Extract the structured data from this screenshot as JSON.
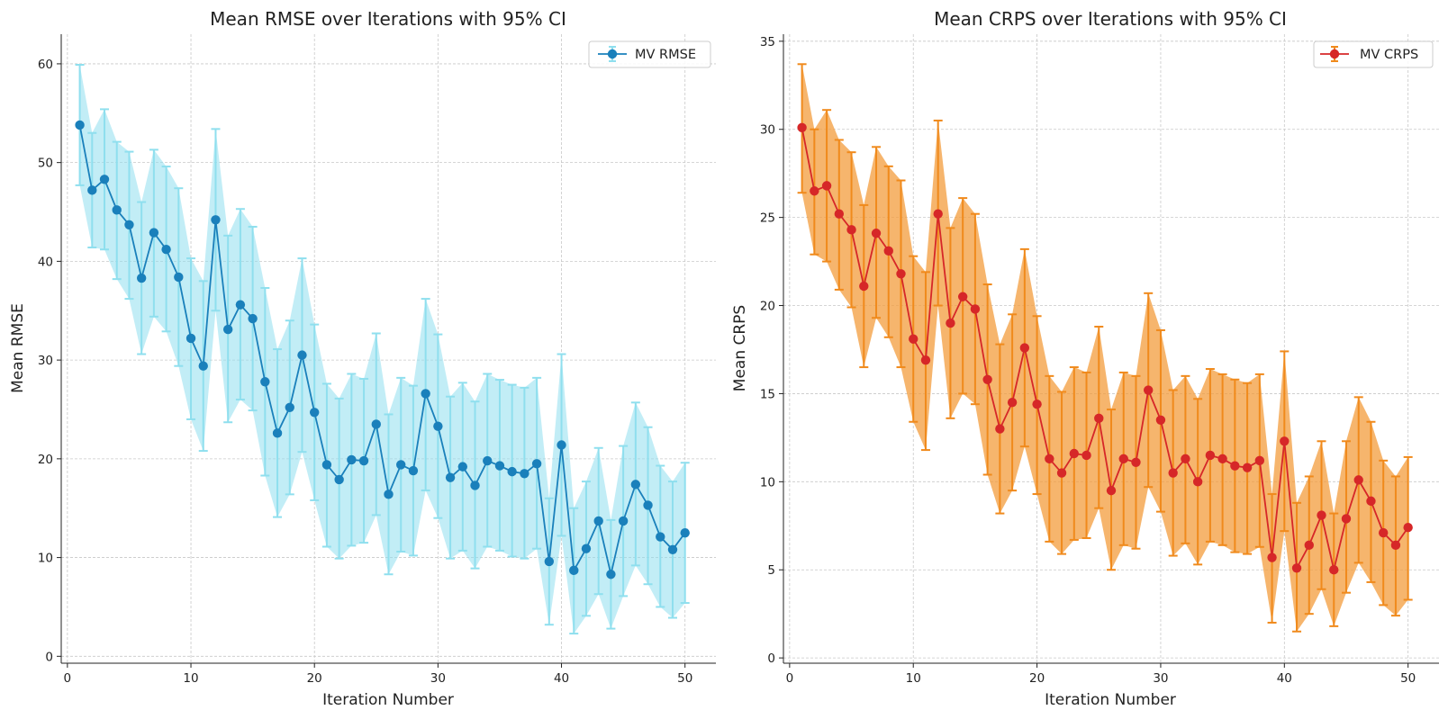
{
  "chart_data": [
    {
      "type": "line",
      "title": "Mean RMSE over Iterations with 95% CI",
      "xlabel": "Iteration Number",
      "ylabel": "Mean RMSE",
      "xlim": [
        -0.5,
        52.5
      ],
      "ylim": [
        -0.7,
        63
      ],
      "xticks": [
        0,
        10,
        20,
        30,
        40,
        50
      ],
      "yticks": [
        0,
        10,
        20,
        30,
        40,
        50,
        60
      ],
      "grid": true,
      "legend_position": "top-right",
      "series": [
        {
          "name": "MV RMSE",
          "line_color": "#1a80bb",
          "ci_color": "#8fdfee",
          "x": [
            1,
            2,
            3,
            4,
            5,
            6,
            7,
            8,
            9,
            10,
            11,
            12,
            13,
            14,
            15,
            16,
            17,
            18,
            19,
            20,
            21,
            22,
            23,
            24,
            25,
            26,
            27,
            28,
            29,
            30,
            31,
            32,
            33,
            34,
            35,
            36,
            37,
            38,
            39,
            40,
            41,
            42,
            43,
            44,
            45,
            46,
            47,
            48,
            49,
            50
          ],
          "values": [
            53.8,
            47.2,
            48.3,
            45.2,
            43.7,
            38.3,
            42.9,
            41.2,
            38.4,
            32.2,
            29.4,
            44.2,
            33.1,
            35.6,
            34.2,
            27.8,
            22.6,
            25.2,
            30.5,
            24.7,
            19.4,
            17.9,
            19.9,
            19.8,
            23.5,
            16.4,
            19.4,
            18.8,
            26.6,
            23.3,
            18.1,
            19.2,
            17.3,
            19.8,
            19.3,
            18.7,
            18.5,
            19.5,
            9.6,
            21.4,
            8.7,
            10.9,
            13.7,
            8.3,
            13.7,
            17.4,
            15.3,
            12.1,
            10.8,
            12.5
          ],
          "lower": [
            47.7,
            41.4,
            41.2,
            38.2,
            36.2,
            30.6,
            34.4,
            32.9,
            29.4,
            24.0,
            20.8,
            35.0,
            23.7,
            26.0,
            24.9,
            18.3,
            14.1,
            16.4,
            20.7,
            15.8,
            11.1,
            9.9,
            11.2,
            11.5,
            14.3,
            8.3,
            10.6,
            10.2,
            16.8,
            14.0,
            9.9,
            10.7,
            8.9,
            11.1,
            10.7,
            10.1,
            9.9,
            10.9,
            3.2,
            12.2,
            2.3,
            4.1,
            6.3,
            2.8,
            6.1,
            9.2,
            7.3,
            5.0,
            3.9,
            5.4
          ],
          "upper": [
            59.9,
            53.0,
            55.4,
            52.1,
            51.1,
            46.0,
            51.3,
            49.6,
            47.4,
            40.3,
            38.0,
            53.4,
            42.6,
            45.3,
            43.5,
            37.3,
            31.1,
            34.0,
            40.3,
            33.6,
            27.6,
            26.1,
            28.6,
            28.1,
            32.7,
            24.5,
            28.2,
            27.4,
            36.2,
            32.6,
            26.3,
            27.7,
            25.8,
            28.6,
            28.0,
            27.5,
            27.2,
            28.2,
            16.0,
            30.6,
            15.0,
            17.7,
            21.1,
            13.8,
            21.3,
            25.7,
            23.2,
            19.3,
            17.7,
            19.6
          ]
        }
      ]
    },
    {
      "type": "line",
      "title": "Mean CRPS over Iterations with 95% CI",
      "xlabel": "Iteration Number",
      "ylabel": "Mean CRPS",
      "xlim": [
        -0.5,
        52.5
      ],
      "ylim": [
        -0.3,
        35.4
      ],
      "xticks": [
        0,
        10,
        20,
        30,
        40,
        50
      ],
      "yticks": [
        0,
        5,
        10,
        15,
        20,
        25,
        30,
        35
      ],
      "grid": true,
      "legend_position": "top-right",
      "series": [
        {
          "name": "MV CRPS",
          "line_color": "#d62728",
          "ci_color": "#f39c3c",
          "errbar_color": "#f08a1c",
          "x": [
            1,
            2,
            3,
            4,
            5,
            6,
            7,
            8,
            9,
            10,
            11,
            12,
            13,
            14,
            15,
            16,
            17,
            18,
            19,
            20,
            21,
            22,
            23,
            24,
            25,
            26,
            27,
            28,
            29,
            30,
            31,
            32,
            33,
            34,
            35,
            36,
            37,
            38,
            39,
            40,
            41,
            42,
            43,
            44,
            45,
            46,
            47,
            48,
            49,
            50
          ],
          "values": [
            30.1,
            26.5,
            26.8,
            25.2,
            24.3,
            21.1,
            24.1,
            23.1,
            21.8,
            18.1,
            16.9,
            25.2,
            19.0,
            20.5,
            19.8,
            15.8,
            13.0,
            14.5,
            17.6,
            14.4,
            11.3,
            10.5,
            11.6,
            11.5,
            13.6,
            9.5,
            11.3,
            11.1,
            15.2,
            13.5,
            10.5,
            11.3,
            10.0,
            11.5,
            11.3,
            10.9,
            10.8,
            11.2,
            5.7,
            12.3,
            5.1,
            6.4,
            8.1,
            5.0,
            7.9,
            10.1,
            8.9,
            7.1,
            6.4,
            7.4
          ],
          "lower": [
            26.4,
            22.9,
            22.5,
            20.9,
            19.9,
            16.5,
            19.3,
            18.2,
            16.5,
            13.4,
            11.8,
            20.0,
            13.6,
            15.0,
            14.4,
            10.4,
            8.2,
            9.5,
            12.0,
            9.3,
            6.6,
            5.9,
            6.7,
            6.8,
            8.5,
            5.0,
            6.4,
            6.2,
            9.7,
            8.3,
            5.8,
            6.5,
            5.3,
            6.6,
            6.4,
            6.0,
            5.9,
            6.3,
            2.0,
            7.2,
            1.5,
            2.5,
            3.9,
            1.8,
            3.7,
            5.4,
            4.3,
            3.0,
            2.4,
            3.3
          ],
          "upper": [
            33.7,
            30.0,
            31.1,
            29.4,
            28.7,
            25.7,
            29.0,
            27.9,
            27.1,
            22.8,
            21.9,
            30.5,
            24.4,
            26.1,
            25.2,
            21.2,
            17.8,
            19.5,
            23.2,
            19.4,
            16.0,
            15.1,
            16.5,
            16.2,
            18.8,
            14.1,
            16.2,
            16.0,
            20.7,
            18.6,
            15.2,
            16.0,
            14.7,
            16.4,
            16.1,
            15.8,
            15.6,
            16.1,
            9.3,
            17.4,
            8.8,
            10.3,
            12.3,
            8.2,
            12.3,
            14.8,
            13.4,
            11.2,
            10.3,
            11.4
          ]
        }
      ]
    }
  ]
}
